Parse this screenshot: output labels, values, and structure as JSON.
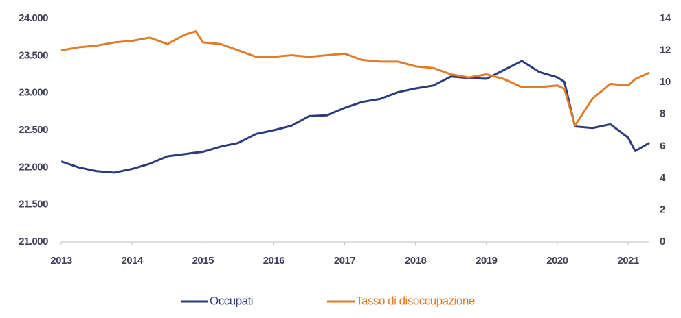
{
  "chart_data": {
    "type": "line",
    "x": [
      2013,
      2013.25,
      2013.5,
      2013.75,
      2014,
      2014.25,
      2014.5,
      2014.75,
      2014.9,
      2015,
      2015.25,
      2015.5,
      2015.75,
      2016,
      2016.25,
      2016.5,
      2016.75,
      2017,
      2017.25,
      2017.5,
      2017.75,
      2018,
      2018.25,
      2018.5,
      2018.75,
      2019,
      2019.25,
      2019.5,
      2019.75,
      2020,
      2020.1,
      2020.25,
      2020.5,
      2020.75,
      2021,
      2021.1,
      2021.3
    ],
    "series": [
      {
        "name": "Occupati",
        "color": "#2e3a78",
        "axis": "y",
        "values": [
          22080,
          22000,
          21950,
          21930,
          21980,
          22050,
          22150,
          22180,
          22200,
          22210,
          22280,
          22330,
          22450,
          22500,
          22560,
          22690,
          22700,
          22800,
          22880,
          22920,
          23010,
          23060,
          23100,
          23220,
          23200,
          23190,
          23310,
          23430,
          23280,
          23210,
          23150,
          22550,
          22530,
          22580,
          22400,
          22220,
          22330
        ]
      },
      {
        "name": "Tasso di disoccupazione",
        "color": "#e07b2a",
        "axis": "y2",
        "values": [
          12.0,
          12.2,
          12.3,
          12.5,
          12.6,
          12.8,
          12.4,
          13.0,
          13.2,
          12.5,
          12.4,
          12.0,
          11.6,
          11.6,
          11.7,
          11.6,
          11.7,
          11.8,
          11.4,
          11.3,
          11.3,
          11.0,
          10.9,
          10.5,
          10.3,
          10.5,
          10.2,
          9.7,
          9.7,
          9.8,
          9.6,
          7.3,
          9.0,
          9.9,
          9.8,
          10.2,
          10.6
        ]
      }
    ],
    "xlim": [
      2013,
      2021.3
    ],
    "xticks": [
      2013,
      2014,
      2015,
      2016,
      2017,
      2018,
      2019,
      2020,
      2021
    ],
    "ylim": [
      21000,
      24000
    ],
    "yticks": [
      {
        "value": 21000,
        "label": "21.000"
      },
      {
        "value": 21500,
        "label": "21.500"
      },
      {
        "value": 22000,
        "label": "22.000"
      },
      {
        "value": 22500,
        "label": "22.500"
      },
      {
        "value": 23000,
        "label": "23.000"
      },
      {
        "value": 23500,
        "label": "23.500"
      },
      {
        "value": 24000,
        "label": "24.000"
      }
    ],
    "y2lim": [
      0,
      14
    ],
    "y2ticks": [
      0,
      2,
      4,
      6,
      8,
      10,
      12,
      14
    ]
  }
}
